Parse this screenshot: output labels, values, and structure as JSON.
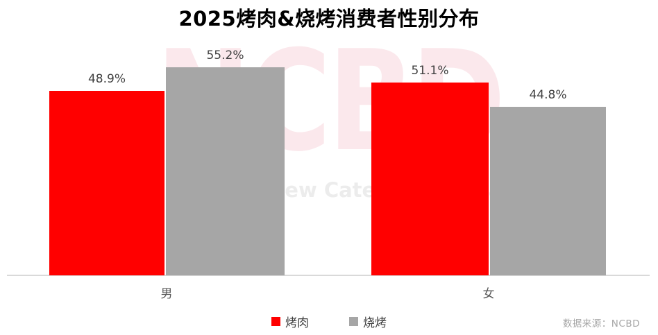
{
  "title": "2025烤肉&烧烤消费者性别分布",
  "watermark": {
    "logo": "NCBD",
    "subtext": "New Catering Big Data",
    "logo_color": "#fbe8ec",
    "subtext_color": "#ececec"
  },
  "source": "数据来源：NCBD",
  "source_color": "#a6a6a6",
  "axis_color": "#d9d9d9",
  "legend": [
    {
      "label": "烤肉",
      "color": "#ff0000"
    },
    {
      "label": "烧烤",
      "color": "#a6a6a6"
    }
  ],
  "chart_data": {
    "type": "bar",
    "title": "2025烤肉&烧烤消费者性别分布",
    "categories": [
      "男",
      "女"
    ],
    "series": [
      {
        "name": "烤肉",
        "color": "#ff0000",
        "values": [
          48.9,
          51.1
        ],
        "labels": [
          "48.9%",
          "51.1%"
        ]
      },
      {
        "name": "烧烤",
        "color": "#a6a6a6",
        "values": [
          55.2,
          44.8
        ],
        "labels": [
          "55.2%",
          "44.8%"
        ]
      }
    ],
    "ylim": [
      0,
      60
    ],
    "grid": false,
    "y_axis_visible": false,
    "legend_position": "bottom",
    "data_labels": "outside-end"
  }
}
